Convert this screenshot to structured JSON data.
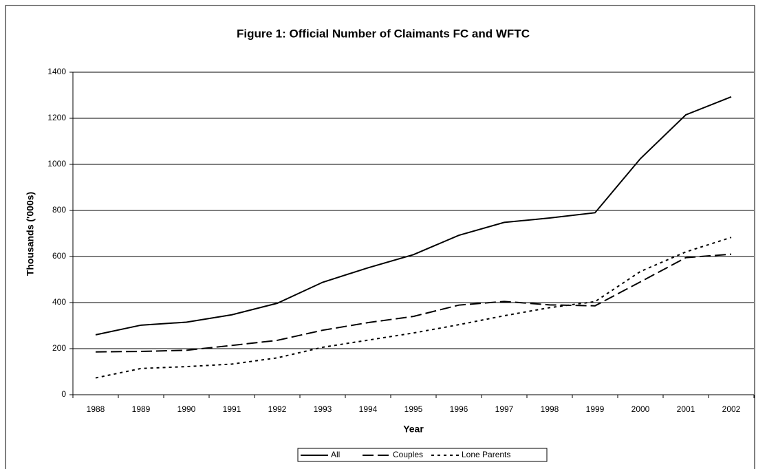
{
  "chart_data": {
    "type": "line",
    "title": "Figure 1: Official Number of Claimants FC and WFTC",
    "x_label": "Year",
    "y_label": "Thousands ('000s)",
    "categories": [
      "1988",
      "1989",
      "1990",
      "1991",
      "1992",
      "1993",
      "1994",
      "1995",
      "1996",
      "1997",
      "1998",
      "1999",
      "2000",
      "2001",
      "2002"
    ],
    "series": [
      {
        "name": "All",
        "color": "#000000",
        "line_style": "solid",
        "values": [
          260,
          302,
          315,
          347,
          397,
          488,
          551,
          608,
          692,
          748,
          767,
          790,
          1025,
          1215,
          1293
        ]
      },
      {
        "name": "Couples",
        "color": "#000000",
        "line_style": "long-dash",
        "values": [
          186,
          188,
          193,
          214,
          236,
          280,
          313,
          340,
          389,
          405,
          390,
          386,
          490,
          595,
          610
        ]
      },
      {
        "name": "Lone Parents",
        "color": "#000000",
        "line_style": "short-dash",
        "values": [
          73,
          114,
          122,
          133,
          160,
          206,
          237,
          268,
          304,
          343,
          378,
          404,
          535,
          620,
          683
        ]
      }
    ],
    "ylim": [
      0,
      1400
    ],
    "yticks": [
      0,
      200,
      400,
      600,
      800,
      1000,
      1200,
      1400
    ],
    "grid": true,
    "legend_position": "bottom"
  }
}
